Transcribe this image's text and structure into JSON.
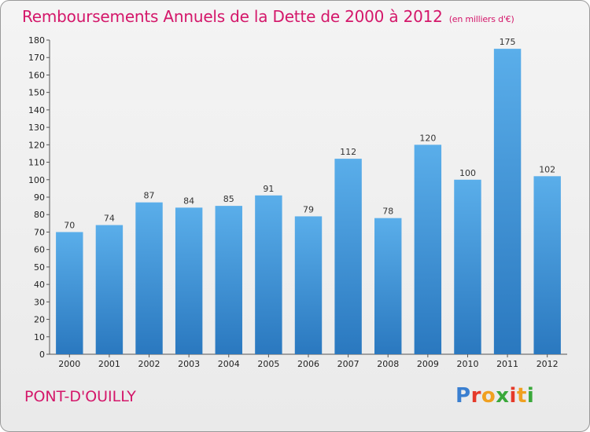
{
  "chart_data": {
    "type": "bar",
    "title": "Remboursements Annuels de la Dette de 2000 à 2012",
    "subtitle": "(en milliers d'€)",
    "categories": [
      "2000",
      "2001",
      "2002",
      "2003",
      "2004",
      "2005",
      "2006",
      "2007",
      "2008",
      "2009",
      "2010",
      "2011",
      "2012"
    ],
    "values": [
      70,
      74,
      87,
      84,
      85,
      91,
      79,
      112,
      78,
      120,
      100,
      175,
      102
    ],
    "ylim": [
      0,
      180
    ],
    "ytick_step": 10,
    "grid": false,
    "bar_color": "#4a9ee0"
  },
  "footer": {
    "place": "PONT-D'OUILLY",
    "logo_letters": [
      "P",
      "r",
      "o",
      "x",
      "i",
      "t",
      "i"
    ],
    "logo_colors": [
      "#3a7fd0",
      "#e53a2a",
      "#f0a020",
      "#3aa83a",
      "#e53a2a",
      "#f0a020",
      "#3aa83a"
    ]
  }
}
